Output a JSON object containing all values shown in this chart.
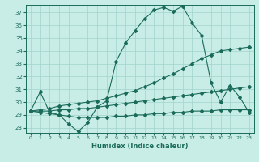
{
  "xlabel": "Humidex (Indice chaleur)",
  "bg_color": "#c8ece6",
  "grid_color": "#a0d4cc",
  "line_color": "#1a6b5a",
  "xlim": [
    -0.5,
    23.5
  ],
  "ylim": [
    27.6,
    37.6
  ],
  "yticks": [
    28,
    29,
    30,
    31,
    32,
    33,
    34,
    35,
    36,
    37
  ],
  "xticks": [
    0,
    1,
    2,
    3,
    4,
    5,
    6,
    7,
    8,
    9,
    10,
    11,
    12,
    13,
    14,
    15,
    16,
    17,
    18,
    19,
    20,
    21,
    22,
    23
  ],
  "y_main": [
    29.3,
    30.8,
    29.2,
    29.0,
    28.3,
    27.7,
    28.4,
    29.6,
    30.1,
    33.2,
    34.6,
    35.6,
    36.5,
    37.2,
    37.4,
    37.1,
    37.5,
    36.2,
    35.2,
    31.5,
    30.0,
    31.3,
    30.4,
    29.2
  ],
  "y_upper_linear": [
    29.3,
    29.4,
    29.5,
    29.7,
    29.8,
    29.9,
    30.0,
    30.1,
    30.3,
    30.5,
    30.7,
    30.9,
    31.2,
    31.5,
    31.9,
    32.2,
    32.6,
    33.0,
    33.4,
    33.7,
    34.0,
    34.1,
    34.2,
    34.3
  ],
  "y_lower_linear": [
    29.3,
    29.3,
    29.3,
    29.4,
    29.4,
    29.5,
    29.5,
    29.6,
    29.7,
    29.8,
    29.9,
    30.0,
    30.1,
    30.2,
    30.3,
    30.4,
    30.5,
    30.6,
    30.7,
    30.8,
    30.9,
    31.0,
    31.1,
    31.2
  ],
  "y_flat": [
    29.3,
    29.2,
    29.1,
    29.0,
    28.9,
    28.8,
    28.8,
    28.8,
    28.8,
    28.9,
    28.9,
    29.0,
    29.0,
    29.1,
    29.1,
    29.2,
    29.2,
    29.3,
    29.3,
    29.3,
    29.4,
    29.4,
    29.4,
    29.4
  ],
  "markersize": 2.0,
  "linewidth": 0.8
}
